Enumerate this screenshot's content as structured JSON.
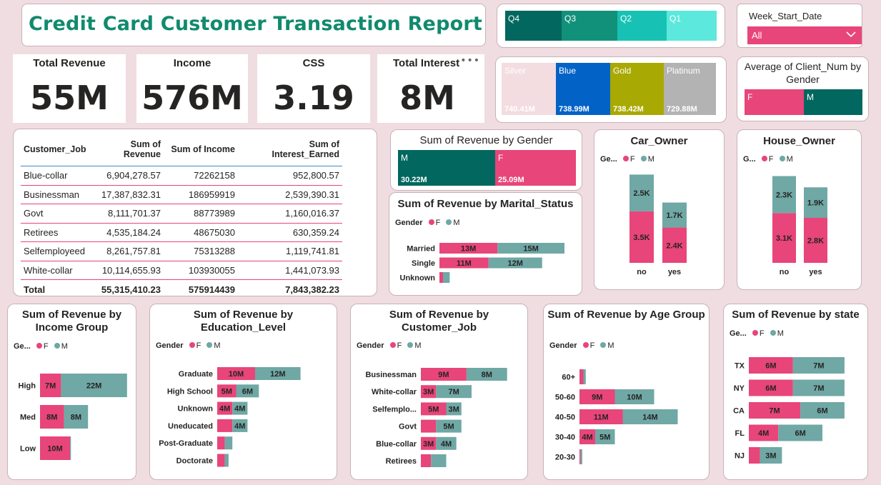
{
  "title": "Credit Card Customer Transaction Report",
  "kpis": {
    "revenue": {
      "label": "Total Revenue",
      "value": "55M"
    },
    "income": {
      "label": "Income",
      "value": "576M"
    },
    "css": {
      "label": "CSS",
      "value": "3.19"
    },
    "interest": {
      "label": "Total Interest",
      "value": "8M"
    },
    "more_icon": "more-options-icon"
  },
  "slicer": {
    "label": "Week_Start_Date",
    "value": "All",
    "icon": "chevron-down-icon"
  },
  "colors": {
    "female": "#e8457a",
    "male": "#6fa8a5",
    "dark_teal": "#01675f",
    "title_green": "#118a6e"
  },
  "quarters": [
    {
      "label": "Q4",
      "color": "#01675f"
    },
    {
      "label": "Q3",
      "color": "#12917a"
    },
    {
      "label": "Q2",
      "color": "#17c2b4"
    },
    {
      "label": "Q1",
      "color": "#5ce8dc"
    }
  ],
  "card_categories": [
    {
      "label": "Silver",
      "value": "740.41M",
      "color": "#f3dde1"
    },
    {
      "label": "Blue",
      "value": "738.99M",
      "color": "#0362c6"
    },
    {
      "label": "Gold",
      "value": "738.42M",
      "color": "#a9a903"
    },
    {
      "label": "Platinum",
      "value": "729.88M",
      "color": "#b3b3b3"
    }
  ],
  "avg_client": {
    "title": "Average of Client_Num by Gender",
    "labels": [
      "F",
      "M"
    ]
  },
  "table": {
    "headers": [
      "Customer_Job",
      "Sum of Revenue",
      "Sum of Income",
      "Sum of Interest_Earned"
    ],
    "rows": [
      [
        "Blue-collar",
        "6,904,278.57",
        "72262158",
        "952,800.57"
      ],
      [
        "Businessman",
        "17,387,832.31",
        "186959919",
        "2,539,390.31"
      ],
      [
        "Govt",
        "8,111,701.37",
        "88773989",
        "1,160,016.37"
      ],
      [
        "Retirees",
        "4,535,184.24",
        "48675030",
        "630,359.24"
      ],
      [
        "Selfemployeed",
        "8,261,757.81",
        "75313288",
        "1,119,741.81"
      ],
      [
        "White-collar",
        "10,114,655.93",
        "103930055",
        "1,441,073.93"
      ]
    ],
    "total": [
      "Total",
      "55,315,410.23",
      "575914439",
      "7,843,382.23"
    ]
  },
  "legend_label": "Gender",
  "legend_label_short": "Ge...",
  "legend_label_g": "G...",
  "legend_f": "F",
  "legend_m": "M",
  "chart_data": [
    {
      "id": "gender",
      "type": "bar",
      "title": "Sum of Revenue by Gender",
      "categories": [
        "M",
        "F"
      ],
      "values": [
        30.22,
        25.09
      ],
      "labels": [
        "30.22M",
        "25.09M"
      ]
    },
    {
      "id": "marital",
      "type": "bar",
      "title": "Sum of Revenue by Marital_Status",
      "categories": [
        "Married",
        "Single",
        "Unknown"
      ],
      "series": [
        {
          "name": "F",
          "values": [
            13,
            11,
            0.8
          ],
          "labels": [
            "13M",
            "11M",
            ""
          ]
        },
        {
          "name": "M",
          "values": [
            15,
            12,
            1.5
          ],
          "labels": [
            "15M",
            "12M",
            ""
          ]
        }
      ]
    },
    {
      "id": "car",
      "type": "bar",
      "title": "Car_Owner",
      "categories": [
        "no",
        "yes"
      ],
      "series": [
        {
          "name": "F",
          "values": [
            3.5,
            2.4
          ],
          "labels": [
            "3.5K",
            "2.4K"
          ]
        },
        {
          "name": "M",
          "values": [
            2.5,
            1.7
          ],
          "labels": [
            "2.5K",
            "1.7K"
          ]
        }
      ]
    },
    {
      "id": "house",
      "type": "bar",
      "title": "House_Owner",
      "categories": [
        "no",
        "yes"
      ],
      "series": [
        {
          "name": "F",
          "values": [
            3.1,
            2.8
          ],
          "labels": [
            "3.1K",
            "2.8K"
          ]
        },
        {
          "name": "M",
          "values": [
            2.3,
            1.9
          ],
          "labels": [
            "2.3K",
            "1.9K"
          ]
        }
      ]
    },
    {
      "id": "income",
      "type": "bar",
      "title": "Sum of Revenue by Income Group",
      "categories": [
        "High",
        "Med",
        "Low"
      ],
      "series": [
        {
          "name": "F",
          "values": [
            7,
            8,
            10
          ],
          "labels": [
            "7M",
            "8M",
            "10M"
          ]
        },
        {
          "name": "M",
          "values": [
            22,
            8,
            0.3
          ],
          "labels": [
            "22M",
            "8M",
            ""
          ]
        }
      ]
    },
    {
      "id": "education",
      "type": "bar",
      "title": "Sum of Revenue by Education_Level",
      "categories": [
        "Graduate",
        "High School",
        "Unknown",
        "Uneducated",
        "Post-Graduate",
        "Doctorate"
      ],
      "series": [
        {
          "name": "F",
          "values": [
            10,
            5,
            4,
            4,
            2,
            2
          ],
          "labels": [
            "10M",
            "5M",
            "4M",
            "",
            "",
            ""
          ]
        },
        {
          "name": "M",
          "values": [
            12,
            6,
            4,
            4,
            2,
            1
          ],
          "labels": [
            "12M",
            "6M",
            "4M",
            "4M",
            "",
            ""
          ]
        }
      ]
    },
    {
      "id": "job",
      "type": "bar",
      "title": "Sum of Revenue by Customer_Job",
      "categories": [
        "Businessman",
        "White-collar",
        "Selfemplo...",
        "Govt",
        "Blue-collar",
        "Retirees"
      ],
      "series": [
        {
          "name": "F",
          "values": [
            9,
            3,
            5,
            3,
            3,
            2
          ],
          "labels": [
            "9M",
            "3M",
            "5M",
            "",
            "3M",
            ""
          ]
        },
        {
          "name": "M",
          "values": [
            8,
            7,
            3,
            5,
            4,
            3
          ],
          "labels": [
            "8M",
            "7M",
            "3M",
            "5M",
            "4M",
            ""
          ]
        }
      ]
    },
    {
      "id": "age",
      "type": "bar",
      "title": "Sum of Revenue by Age Group",
      "categories": [
        "60+",
        "50-60",
        "40-50",
        "30-40",
        "20-30"
      ],
      "series": [
        {
          "name": "F",
          "values": [
            1,
            9,
            11,
            4,
            0.3
          ],
          "labels": [
            "",
            "9M",
            "11M",
            "4M",
            ""
          ]
        },
        {
          "name": "M",
          "values": [
            0.6,
            10,
            14,
            5,
            0.4
          ],
          "labels": [
            "",
            "10M",
            "14M",
            "5M",
            ""
          ]
        }
      ]
    },
    {
      "id": "state",
      "type": "bar",
      "title": "Sum of Revenue by state",
      "categories": [
        "TX",
        "NY",
        "CA",
        "FL",
        "NJ"
      ],
      "series": [
        {
          "name": "F",
          "values": [
            6,
            6,
            7,
            4,
            1.5
          ],
          "labels": [
            "6M",
            "6M",
            "7M",
            "4M",
            ""
          ]
        },
        {
          "name": "M",
          "values": [
            7,
            7,
            6,
            6,
            3
          ],
          "labels": [
            "7M",
            "7M",
            "6M",
            "6M",
            "3M"
          ]
        }
      ]
    }
  ]
}
